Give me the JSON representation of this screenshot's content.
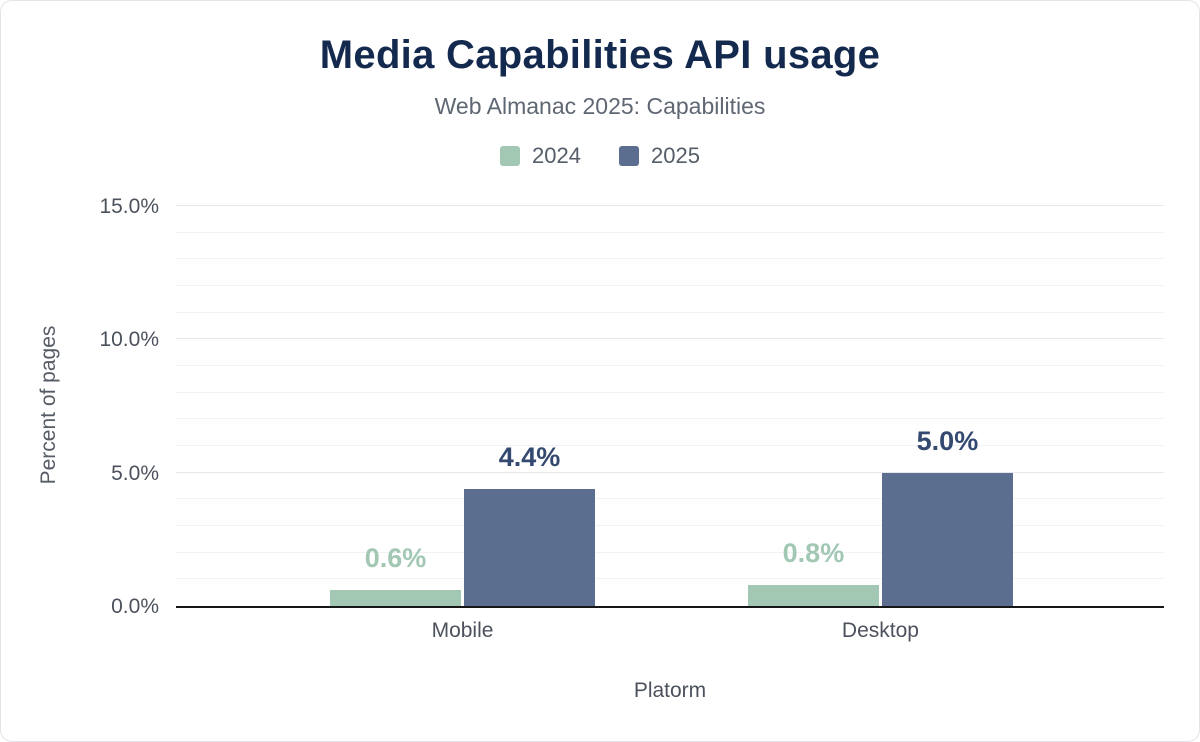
{
  "chart_data": {
    "type": "bar",
    "title": "Media Capabilities API usage",
    "subtitle": "Web Almanac 2025: Capabilities",
    "categories": [
      "Mobile",
      "Desktop"
    ],
    "series": [
      {
        "name": "2024",
        "color": "#a2c8b4",
        "label_color": "#a2c8b4",
        "values": [
          0.6,
          0.8
        ],
        "value_labels": [
          "0.6%",
          "0.8%"
        ]
      },
      {
        "name": "2025",
        "color": "#5c6e8f",
        "label_color": "#33496f",
        "values": [
          4.4,
          5.0
        ],
        "value_labels": [
          "4.4%",
          "5.0%"
        ]
      }
    ],
    "xlabel": "Platorm",
    "ylabel": "Percent of pages",
    "ylim": [
      0,
      15
    ],
    "yticks": [
      0,
      5,
      10,
      15
    ],
    "ytick_labels": [
      "0.0%",
      "5.0%",
      "10.0%",
      "15.0%"
    ],
    "grid_interval": 1,
    "grid": "horizontal",
    "legend_position": "top",
    "colors": {
      "title": "#13294e",
      "subtitle": "#5f6773",
      "axis_text": "#4c525d",
      "axis_line": "#161616",
      "gridline_minor": "#f2f2f6",
      "gridline_major": "#e7e7ee"
    }
  }
}
